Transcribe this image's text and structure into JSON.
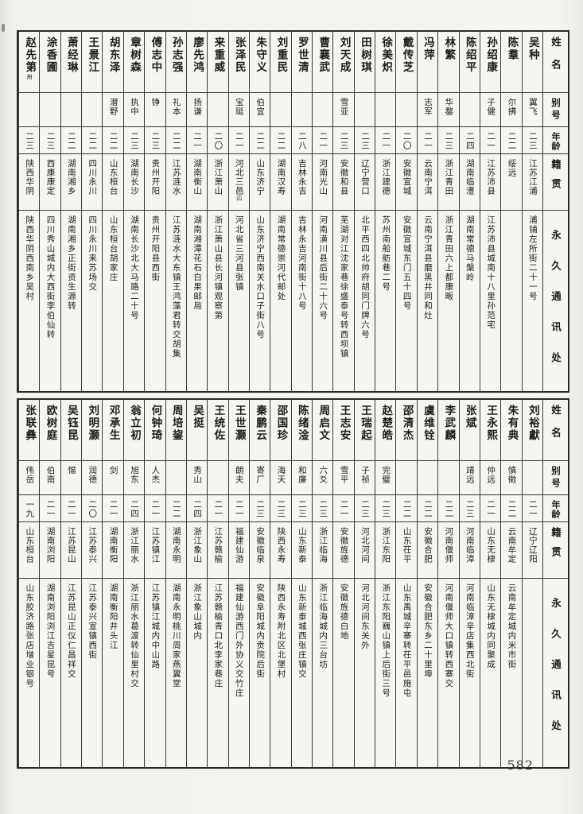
{
  "page": {
    "number": "582"
  },
  "header_labels": {
    "name": "姓名",
    "alias": "别号",
    "age": "年龄",
    "native": "籍贯",
    "address": "永久通讯处"
  },
  "tables": [
    {
      "entries": [
        {
          "name": "吴种",
          "alias": "翼飞",
          "age": "二三",
          "native": "江苏江浦",
          "address": "浦铺左所街二十一号"
        },
        {
          "name": "陈羣",
          "alias": "尔拂",
          "age": "二二",
          "native": "绥远",
          "address": ""
        },
        {
          "name": "孙绍康",
          "alias": "子健",
          "age": "二一",
          "native": "江苏沛县",
          "address": "江苏沛县城南十八里孙范宅"
        },
        {
          "name": "陈绍平",
          "alias": "",
          "age": "二四",
          "native": "湖南临澧",
          "address": "湖南常德马槃岭"
        },
        {
          "name": "林繁",
          "alias": "华鍪",
          "age": "二三",
          "native": "浙江青田",
          "address": "浙江青田六上都康畈"
        },
        {
          "name": "冯萍",
          "alias": "志军",
          "age": "二一",
          "native": "云南宁洱",
          "address": "云南宁洱县磨黑井同和灶"
        },
        {
          "name": "戴传芝",
          "alias": "",
          "age": "二〇",
          "native": "安徽宣城",
          "address": "安徽宣城东门五十四号"
        },
        {
          "name": "徐美炽",
          "alias": "",
          "age": "二一",
          "native": "浙江建德",
          "address": "苏州南船舫巷二号"
        },
        {
          "name": "田树琪",
          "alias": "",
          "age": "二三",
          "native": "辽宁营口",
          "address": "北平西四北帅府胡同门牌六号"
        },
        {
          "name": "刘天成",
          "alias": "雪亚",
          "age": "二三",
          "native": "安徽和县",
          "address": "芜湖对江沈家巷徐盛泰号转西坝镇"
        },
        {
          "name": "曹襄武",
          "alias": "",
          "age": "二一",
          "native": "河南光山",
          "address": "河南潢川县后街二十六号"
        },
        {
          "name": "罗世清",
          "alias": "",
          "age": "二八",
          "native": "吉林永吉",
          "address": "吉林永吉河南街十八号"
        },
        {
          "name": "刘重民",
          "alias": "",
          "age": "二二",
          "native": "湖南汉寿",
          "address": "湖南常德崇河代邮处"
        },
        {
          "name": "朱守义",
          "alias": "伯宜",
          "age": "二二",
          "native": "山东济宁",
          "address": "山东济宁西南关水口子街八号"
        },
        {
          "name": "张泽民",
          "alias": "宝珽",
          "age": "二一",
          "native": "河北三邑",
          "native_note": "四",
          "address": "河北省三河县张镇"
        },
        {
          "name": "来重威",
          "alias": "",
          "age": "二〇",
          "native": "浙江萧山",
          "address": "浙江萧山县长河镇观察第"
        },
        {
          "name": "廖先鸿",
          "alias": "扬谦",
          "age": "二一",
          "native": "湖南衡山",
          "address": "湖南湘潭花石白果邮局"
        },
        {
          "name": "孙志强",
          "alias": "礼本",
          "age": "二二",
          "native": "江苏涟水",
          "address": "江苏涟水大东镇王鸿藻君转交胡集"
        },
        {
          "name": "傅志中",
          "alias": "铮",
          "age": "二三",
          "native": "贵州开阳",
          "address": "贵州开阳县西街"
        },
        {
          "name": "章树森",
          "alias": "执中",
          "age": "二三",
          "native": "湖南长沙",
          "address": "湖南长沙北大马路二十号"
        },
        {
          "name": "胡东泽",
          "alias": "潜野",
          "age": "二二",
          "native": "山东桓台",
          "address": "山东桓台胡家庄"
        },
        {
          "name": "王景江",
          "alias": "",
          "age": "二二",
          "native": "四川永川",
          "address": "四川永川来苏场交"
        },
        {
          "name": "萧经琳",
          "alias": "",
          "age": "二二",
          "native": "湖南湘乡",
          "address": "湖南湘乡正街资生源转"
        },
        {
          "name": "涂香圃",
          "alias": "",
          "age": "二三",
          "native": "西康康定",
          "address": "四川秀山城内大西街李伯仙转"
        },
        {
          "name": "赵先第",
          "name_note": "卅",
          "alias": "",
          "age": "二三",
          "native": "陕西华阴",
          "address": "陕西华阴西南乡吴村"
        }
      ]
    },
    {
      "entries": [
        {
          "name": "刘裕獻",
          "alias": "",
          "age": "二一",
          "native": "辽宁辽阳",
          "address": ""
        },
        {
          "name": "朱有典",
          "alias": "慎徵",
          "age": "二二",
          "native": "云南牟定",
          "address": "云南牟定城内米市街"
        },
        {
          "name": "王永熙",
          "alias": "仲远",
          "age": "二一",
          "native": "山东无棣",
          "address": "山东无棣城内同聚成"
        },
        {
          "name": "张斌",
          "alias": "靖远",
          "age": "二三",
          "native": "河南临漳",
          "address": "河南临漳辛店集西北街"
        },
        {
          "name": "李武麟",
          "alias": "",
          "age": "二二",
          "native": "河南偃师",
          "address": "河南偃师大口镇转西寨交"
        },
        {
          "name": "虞维铨",
          "alias": "",
          "age": "二二",
          "native": "安徽合肥",
          "address": "安徽合肥东乡二十里埠"
        },
        {
          "name": "邵清杰",
          "alias": "",
          "age": "二二",
          "native": "山东茌平",
          "address": "山东禹城辛寨转茌平邑施屯"
        },
        {
          "name": "赵楚皓",
          "alias": "完璧",
          "age": "二三",
          "native": "浙江东阳",
          "address": "浙江东阳巍山镇上后街三号"
        },
        {
          "name": "王瑞起",
          "alias": "子祯",
          "age": "二三",
          "native": "河北河间",
          "address": "河北河间东关外"
        },
        {
          "name": "王志安",
          "alias": "雪平",
          "age": "二一",
          "native": "安徽旌德",
          "address": "安徽旌德白地"
        },
        {
          "name": "周启文",
          "alias": "六爻",
          "age": "二三",
          "native": "浙江临海",
          "address": "浙江临海城内三台坊"
        },
        {
          "name": "陈绪淦",
          "alias": "和廉",
          "age": "二三",
          "native": "山东新泰",
          "address": "山东新泰城西张庄镇交"
        },
        {
          "name": "邵国珍",
          "alias": "海天",
          "age": "二三",
          "native": "陕西永寿",
          "address": "陕西永寿附北区北堡村"
        },
        {
          "name": "秦鹏云",
          "alias": "寄厂",
          "age": "二三",
          "native": "安徽临泉",
          "address": "安徽阜阳城内贡院后街"
        },
        {
          "name": "王世灏",
          "alias": "朗夫",
          "age": "二一",
          "native": "福建仙游",
          "address": "福建仙游西门外协义交竹庄"
        },
        {
          "name": "王统佐",
          "alias": "",
          "age": "二一",
          "native": "江苏赣榆",
          "address": "江苏赣榆青口北李家巷庄"
        },
        {
          "name": "吴挺",
          "alias": "秀山",
          "age": "二四",
          "native": "浙江象山",
          "address": "浙江象山城内"
        },
        {
          "name": "周培鋆",
          "alias": "",
          "age": "二二",
          "native": "湖南永明",
          "address": "湖南永明桃川周家燕翼堂"
        },
        {
          "name": "何钟琦",
          "alias": "人杰",
          "age": "二一",
          "native": "江苏镇江",
          "address": "江苏镇江城内中山路"
        },
        {
          "name": "翁立初",
          "alias": "旭东",
          "age": "二四",
          "native": "浙江丽水",
          "address": "浙江丽水葛渡转仙里村交"
        },
        {
          "name": "邓承生",
          "alias": "剑",
          "age": "二一",
          "native": "湖南衡阳",
          "address": "湖南衡阳井头江"
        },
        {
          "name": "刘明灏",
          "alias": "润德",
          "age": "二〇",
          "native": "江苏泰兴",
          "address": "江苏泰兴宣镇西街"
        },
        {
          "name": "吴钰昆",
          "alias": "惕",
          "age": "二一",
          "native": "江苏昆山",
          "address": "江苏昆山正仪仁昌祥交"
        },
        {
          "name": "欧树庭",
          "alias": "伯南",
          "age": "二一",
          "native": "湖南浏阳",
          "address": "湖南浏阳浏江吉星昆号"
        },
        {
          "name": "张联彝",
          "alias": "伟岳",
          "age": "一九",
          "native": "山东桓台",
          "address": "山东胶济路张店增业银号"
        }
      ]
    }
  ]
}
